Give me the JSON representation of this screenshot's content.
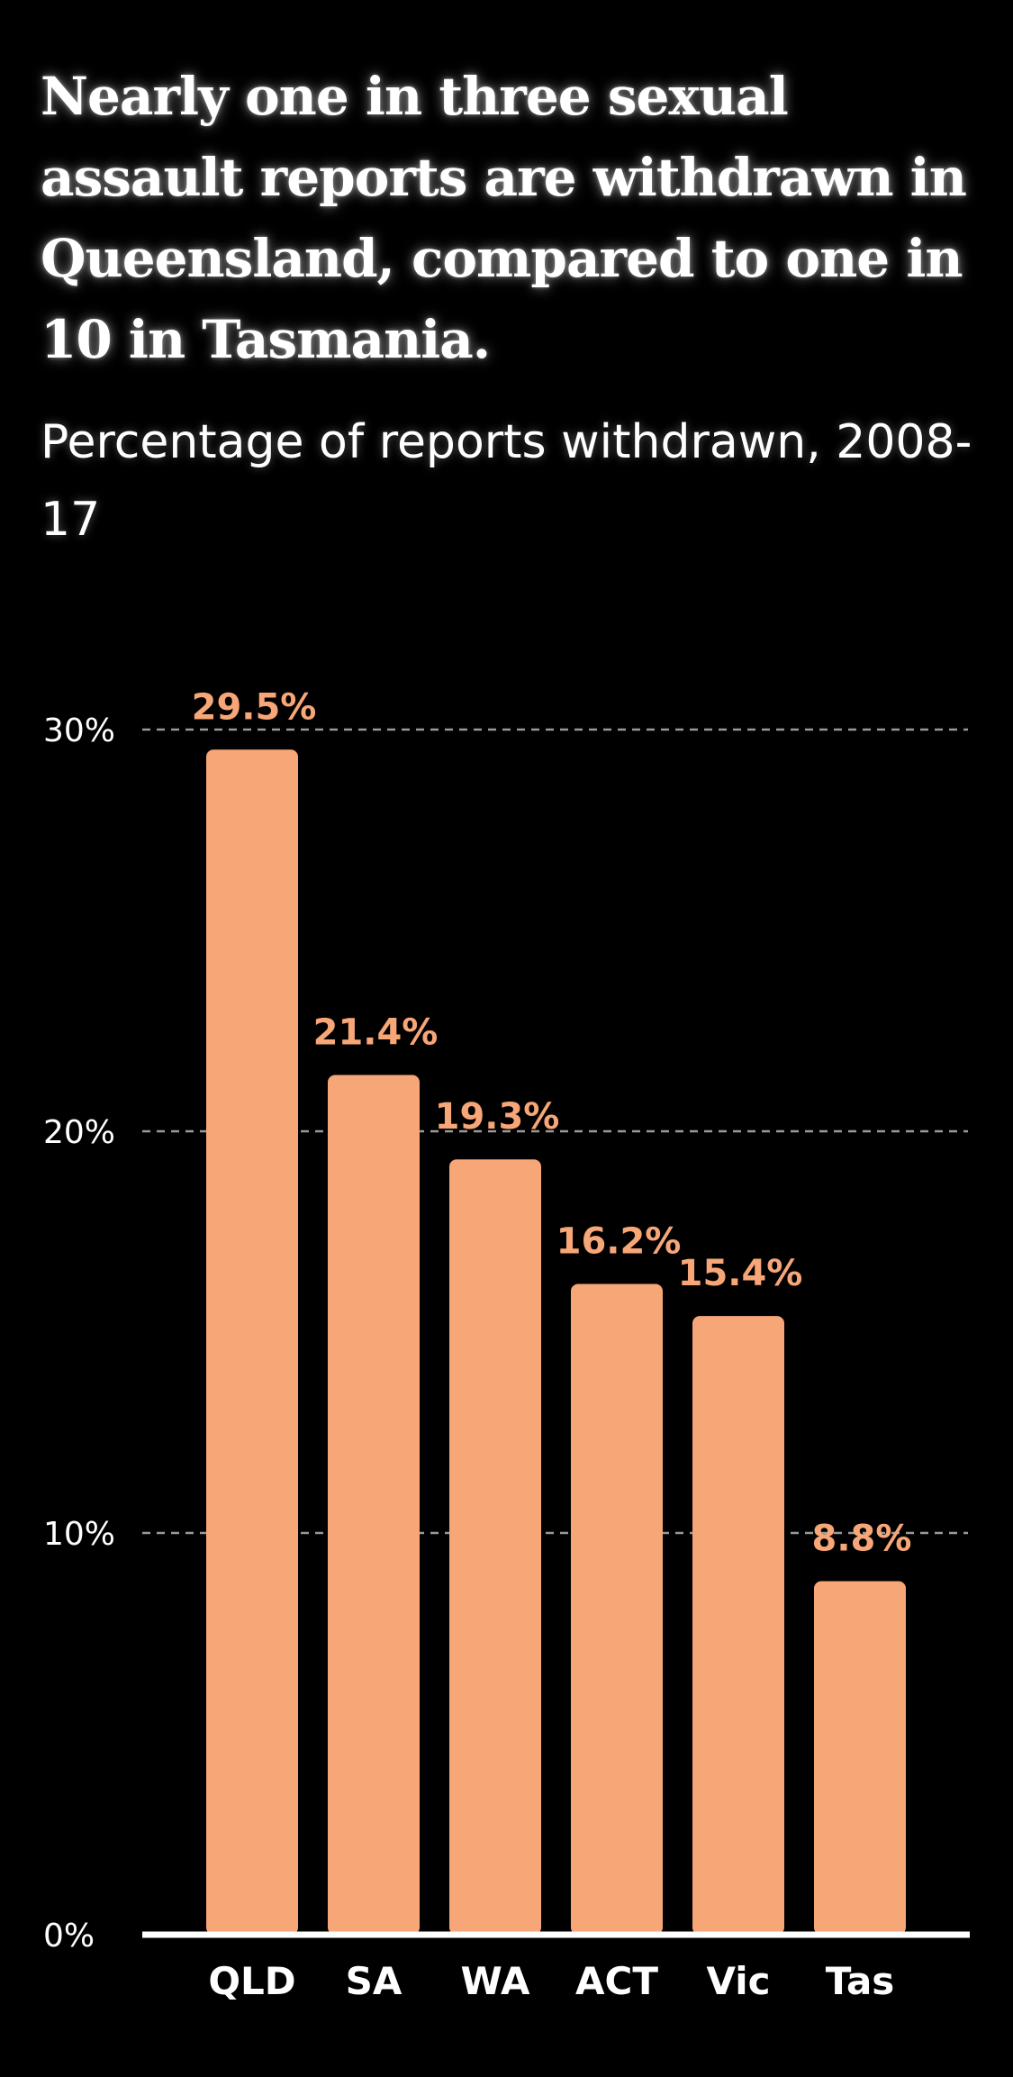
{
  "header": {
    "title": "Nearly one in three sexual assault reports are withdrawn in Queensland, compared to one in 10 in Tasmania.",
    "subtitle": "Percentage of reports withdrawn, 2008-17"
  },
  "colors": {
    "background": "#000000",
    "bar": "#f7a677",
    "value_label": "#f7a677",
    "text": "#ffffff",
    "gridline": "#9a9a9a"
  },
  "chart_data": {
    "type": "bar",
    "title": "Nearly one in three sexual assault reports are withdrawn in Queensland, compared to one in 10 in Tasmania.",
    "subtitle": "Percentage of reports withdrawn, 2008-17",
    "categories": [
      "QLD",
      "SA",
      "WA",
      "ACT",
      "Vic",
      "Tas"
    ],
    "values": [
      29.5,
      21.4,
      19.3,
      16.2,
      15.4,
      8.8
    ],
    "value_labels": [
      "29.5%",
      "21.4%",
      "19.3%",
      "16.2%",
      "15.4%",
      "8.8%"
    ],
    "yticks": [
      0,
      10,
      20,
      30
    ],
    "ytick_labels": [
      "0%",
      "10%",
      "20%",
      "30%"
    ],
    "ylim": [
      0,
      30
    ],
    "xlabel": "",
    "ylabel": "",
    "grid": true,
    "grid_style": "dashed",
    "legend": false
  }
}
